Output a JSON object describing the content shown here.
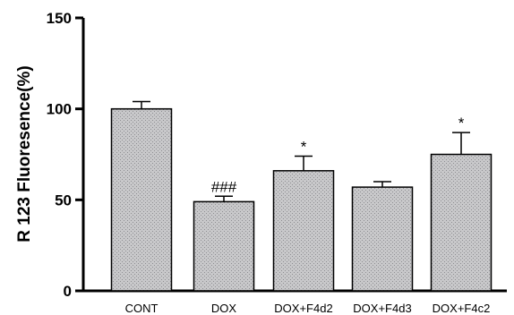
{
  "chart_data": {
    "type": "bar",
    "title": "",
    "xlabel": "",
    "ylabel": "R 123 Fluoresence(%)",
    "ylim": [
      0,
      150
    ],
    "yticks": [
      0,
      50,
      100,
      150
    ],
    "categories": [
      "CONT",
      "DOX",
      "DOX+F4d2",
      "DOX+F4d3",
      "DOX+F4c2"
    ],
    "values": [
      100,
      49,
      66,
      57,
      75
    ],
    "errors": [
      4,
      3,
      8,
      3,
      12
    ],
    "annotations": [
      "",
      "###",
      "*",
      "",
      "*"
    ],
    "bar_color": "#c4c4c6",
    "grid": false,
    "legend": "none"
  }
}
